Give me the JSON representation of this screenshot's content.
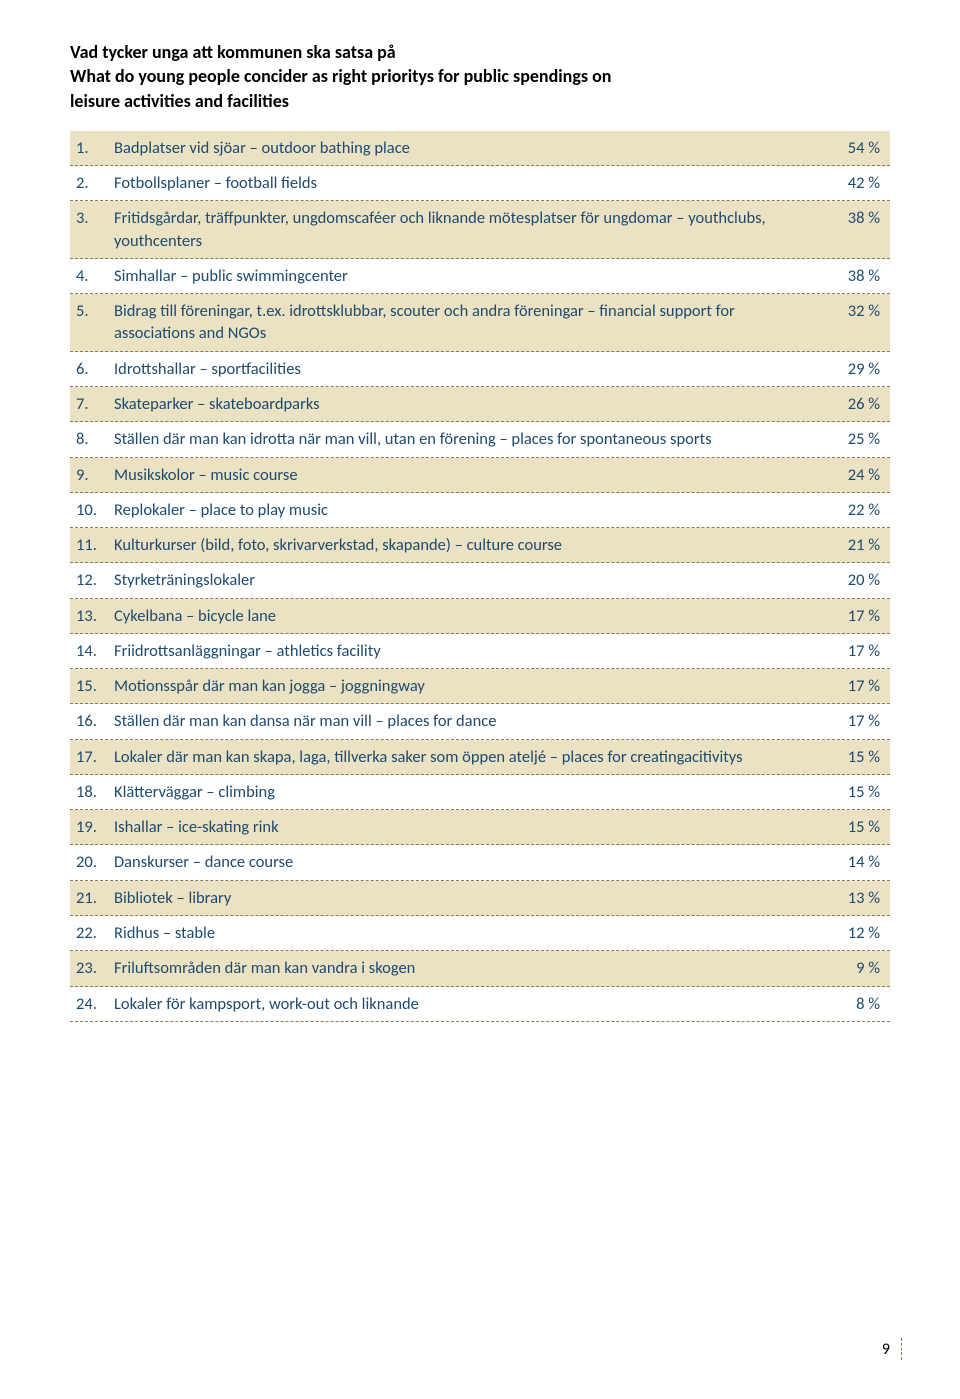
{
  "heading": {
    "line1": "Vad tycker unga att kommunen ska satsa på",
    "line2": "What do young people concider as right prioritys for public spendings on",
    "line3": "leisure activities and facilities"
  },
  "colors": {
    "text_heading": "#000000",
    "text_body": "#1e4a6e",
    "row_alt_bg": "#ebe2c4",
    "dashed_border": "#8a7a5a",
    "page_bg": "#ffffff"
  },
  "fontsizes": {
    "heading": 18,
    "body": 16.5,
    "page_number": 16
  },
  "rows": [
    {
      "n": "1.",
      "desc": "Badplatser vid sjöar – outdoor bathing place",
      "pct": "54 %"
    },
    {
      "n": "2.",
      "desc": "Fotbollsplaner – football fields",
      "pct": "42 %"
    },
    {
      "n": "3.",
      "desc": "Fritidsgårdar, träffpunkter, ungdomscaféer och liknande mötesplatser för ungdomar – youthclubs, youthcenters",
      "pct": "38 %"
    },
    {
      "n": "4.",
      "desc": "Simhallar – public swimmingcenter",
      "pct": "38 %"
    },
    {
      "n": "5.",
      "desc": "Bidrag till föreningar, t.ex. idrottsklubbar, scouter och andra föreningar – financial support for associations and NGOs",
      "pct": "32 %"
    },
    {
      "n": "6.",
      "desc": "Idrottshallar – sportfacilities",
      "pct": "29 %"
    },
    {
      "n": "7.",
      "desc": "Skateparker – skateboardparks",
      "pct": "26 %"
    },
    {
      "n": "8.",
      "desc": "Ställen där man kan idrotta när man vill, utan en förening – places for spontaneous sports",
      "pct": "25 %"
    },
    {
      "n": "9.",
      "desc": "Musikskolor – music course",
      "pct": "24 %"
    },
    {
      "n": "10.",
      "desc": "Replokaler – place to play music",
      "pct": "22 %"
    },
    {
      "n": "11.",
      "desc": "Kulturkurser (bild, foto, skrivarverkstad, skapande) – culture course",
      "pct": "21 %"
    },
    {
      "n": "12.",
      "desc": "Styrketräningslokaler",
      "pct": "20 %"
    },
    {
      "n": "13.",
      "desc": "Cykelbana – bicycle lane",
      "pct": "17 %"
    },
    {
      "n": "14.",
      "desc": "Friidrottsanläggningar – athletics facility",
      "pct": "17 %"
    },
    {
      "n": "15.",
      "desc": "Motionsspår där man kan jogga – joggningway",
      "pct": "17 %"
    },
    {
      "n": "16.",
      "desc": "Ställen där man kan dansa när man vill – places for dance",
      "pct": "17 %"
    },
    {
      "n": "17.",
      "desc": "Lokaler där man kan skapa, laga, tillverka saker som öppen ateljé – places for creatingacitivitys",
      "pct": "15 %"
    },
    {
      "n": "18.",
      "desc": "Klätterväggar – climbing",
      "pct": "15 %"
    },
    {
      "n": "19.",
      "desc": "Ishallar – ice-skating rink",
      "pct": "15 %"
    },
    {
      "n": "20.",
      "desc": "Danskurser – dance course",
      "pct": "14 %"
    },
    {
      "n": "21.",
      "desc": "Bibliotek – library",
      "pct": "13 %"
    },
    {
      "n": "22.",
      "desc": "Ridhus – stable",
      "pct": "12 %"
    },
    {
      "n": "23.",
      "desc": "Friluftsområden där man kan vandra i skogen",
      "pct": "9 %"
    },
    {
      "n": "24.",
      "desc": "Lokaler för kampsport, work-out och liknande",
      "pct": "8 %"
    }
  ],
  "page_number": "9"
}
